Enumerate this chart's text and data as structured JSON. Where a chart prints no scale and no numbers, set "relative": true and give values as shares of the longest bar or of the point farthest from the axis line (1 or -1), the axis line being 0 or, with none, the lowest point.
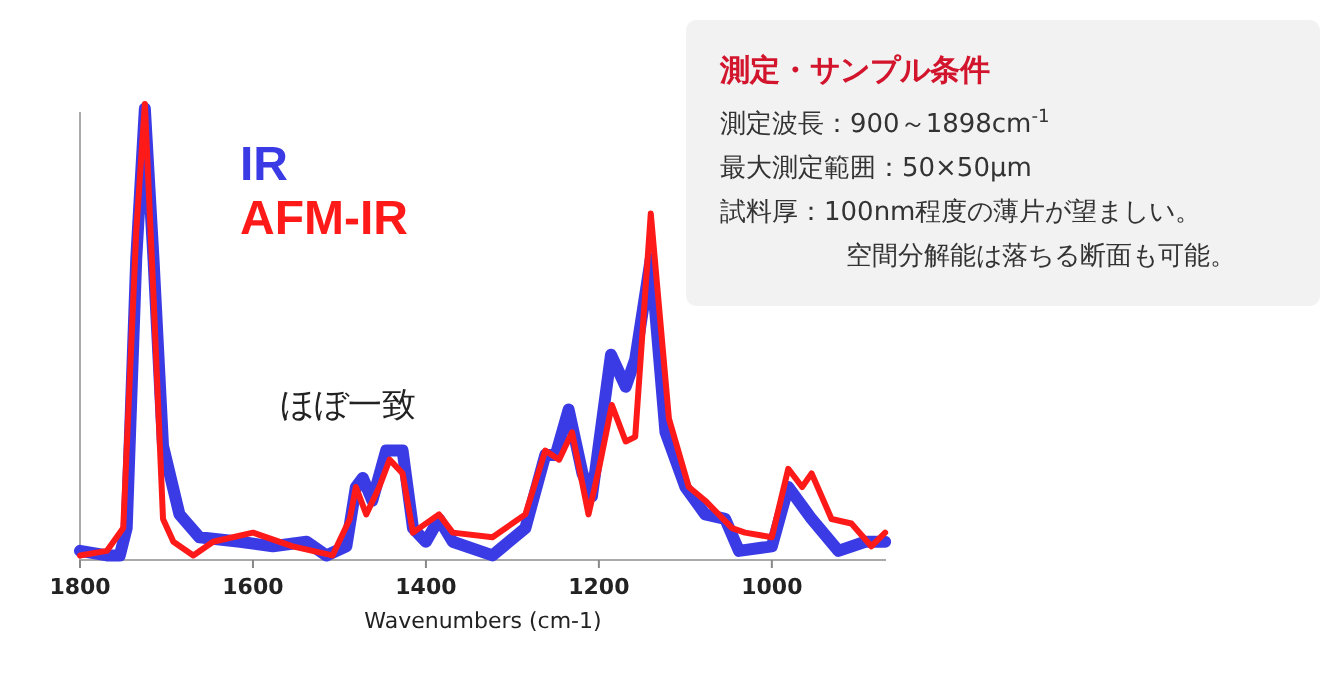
{
  "chart_data": [
    {
      "type": "line",
      "xlabel": "Wavenumbers (cm-1)",
      "relative": true,
      "xlim": [
        1800,
        868
      ],
      "xticks": [
        1800,
        1600,
        1400,
        1200,
        1000
      ],
      "legend": "top left",
      "line_style": "solid",
      "annotations": [
        "ほぼ一致"
      ],
      "series": [
        {
          "name": "IR",
          "color": "#3b3be6",
          "x": [
            1800,
            1769,
            1754,
            1746,
            1735,
            1725,
            1715,
            1704,
            1685,
            1662,
            1615,
            1577,
            1538,
            1515,
            1492,
            1481,
            1473,
            1462,
            1446,
            1427,
            1415,
            1400,
            1385,
            1369,
            1323,
            1285,
            1262,
            1250,
            1235,
            1219,
            1208,
            1186,
            1169,
            1158,
            1140,
            1123,
            1100,
            1077,
            1054,
            1038,
            1000,
            981,
            954,
            923,
            892,
            869
          ],
          "values": [
            0.02,
            0.01,
            0.01,
            0.07,
            0.66,
            0.99,
            0.66,
            0.25,
            0.1,
            0.05,
            0.04,
            0.03,
            0.04,
            0.01,
            0.03,
            0.16,
            0.18,
            0.13,
            0.24,
            0.24,
            0.07,
            0.04,
            0.09,
            0.04,
            0.01,
            0.07,
            0.23,
            0.23,
            0.33,
            0.19,
            0.14,
            0.45,
            0.38,
            0.44,
            0.66,
            0.28,
            0.16,
            0.1,
            0.09,
            0.02,
            0.03,
            0.16,
            0.09,
            0.02,
            0.04,
            0.04
          ]
        },
        {
          "name": "AFM-IR",
          "color": "#ff1a1a",
          "x": [
            1800,
            1769,
            1750,
            1735,
            1725,
            1715,
            1704,
            1692,
            1669,
            1646,
            1600,
            1554,
            1508,
            1488,
            1481,
            1469,
            1454,
            1442,
            1427,
            1415,
            1385,
            1369,
            1323,
            1285,
            1262,
            1246,
            1231,
            1212,
            1200,
            1185,
            1169,
            1158,
            1140,
            1119,
            1096,
            1077,
            1046,
            1031,
            1000,
            981,
            965,
            954,
            931,
            908,
            885,
            869
          ],
          "values": [
            0.01,
            0.02,
            0.07,
            0.72,
            1.0,
            0.58,
            0.09,
            0.04,
            0.01,
            0.04,
            0.06,
            0.03,
            0.01,
            0.09,
            0.16,
            0.1,
            0.16,
            0.22,
            0.19,
            0.06,
            0.1,
            0.06,
            0.05,
            0.1,
            0.24,
            0.22,
            0.28,
            0.1,
            0.2,
            0.34,
            0.26,
            0.27,
            0.76,
            0.31,
            0.16,
            0.13,
            0.07,
            0.06,
            0.05,
            0.2,
            0.16,
            0.19,
            0.09,
            0.08,
            0.03,
            0.06
          ]
        }
      ]
    },
    {
      "type": "other",
      "title": "測定・サンプル条件",
      "annotations": [
        "測定波長：900～1898cm$^{-1}$",
        "最大測定範囲：50×50μm",
        "試料厚：100nm程度の薄片が望ましい。",
        "空間分解能は落ちる断面も可能。"
      ]
    }
  ]
}
